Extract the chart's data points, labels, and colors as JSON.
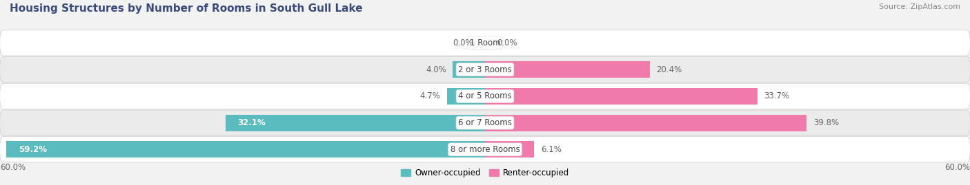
{
  "title": "Housing Structures by Number of Rooms in South Gull Lake",
  "source": "Source: ZipAtlas.com",
  "categories": [
    "1 Room",
    "2 or 3 Rooms",
    "4 or 5 Rooms",
    "6 or 7 Rooms",
    "8 or more Rooms"
  ],
  "owner_values": [
    0.0,
    4.0,
    4.7,
    32.1,
    59.2
  ],
  "renter_values": [
    0.0,
    20.4,
    33.7,
    39.8,
    6.1
  ],
  "owner_color": "#5abcbf",
  "renter_color": "#f07aaa",
  "owner_label": "Owner-occupied",
  "renter_label": "Renter-occupied",
  "axis_max": 60.0,
  "axis_label_left": "60.0%",
  "axis_label_right": "60.0%",
  "bg_color": "#f2f2f2",
  "row_colors": [
    "#ffffff",
    "#ebebeb"
  ],
  "title_fontsize": 11,
  "source_fontsize": 8,
  "label_fontsize": 8.5,
  "category_fontsize": 8.5,
  "title_color": "#3a4a7a",
  "source_color": "#888888",
  "label_color_outside": "#666666",
  "label_color_inside": "#ffffff"
}
